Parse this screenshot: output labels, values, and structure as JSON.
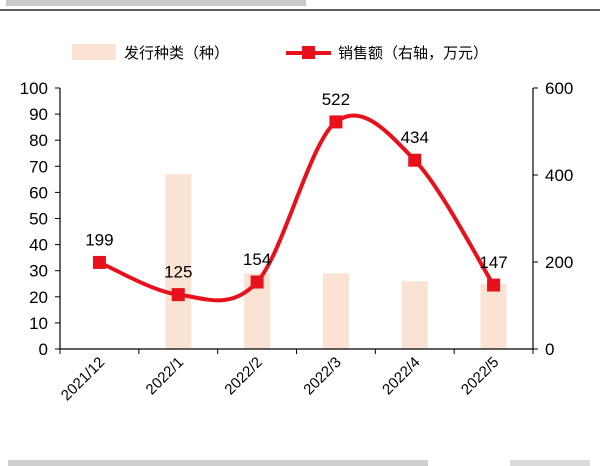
{
  "chart_data": {
    "type": "bar+line",
    "categories": [
      "2021/12",
      "2022/1",
      "2022/2",
      "2022/3",
      "2022/4",
      "2022/5"
    ],
    "series": [
      {
        "name": "发行种类（种）",
        "type": "bar",
        "axis": "left",
        "color": "#fbe3d3",
        "values": [
          0,
          67,
          29,
          29,
          26,
          25
        ]
      },
      {
        "name": "销售额（右轴，万元）",
        "type": "line",
        "axis": "right",
        "color": "#e8101a",
        "values": [
          199,
          125,
          154,
          522,
          434,
          147
        ]
      }
    ],
    "data_labels": [
      "199",
      "125",
      "154",
      "522",
      "434",
      "147"
    ],
    "y_left": {
      "min": 0,
      "max": 100,
      "ticks": [
        "0",
        "10",
        "20",
        "30",
        "40",
        "50",
        "60",
        "70",
        "80",
        "90",
        "100"
      ]
    },
    "y_right": {
      "min": 0,
      "max": 600,
      "ticks": [
        "0",
        "200",
        "400",
        "600"
      ]
    },
    "legend_position": "top",
    "grid": false
  }
}
